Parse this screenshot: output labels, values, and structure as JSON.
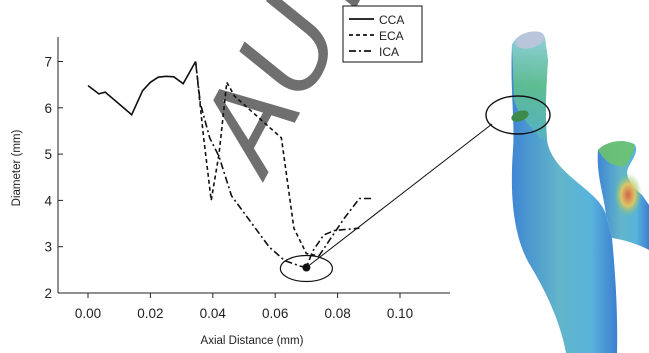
{
  "watermark": "AUTHOR",
  "chart_data": {
    "type": "line",
    "xlabel": "Axial Distance (mm)",
    "ylabel": "Diameter (mm)",
    "xlim": [
      -0.01,
      0.1
    ],
    "ylim": [
      2,
      7.5
    ],
    "x_ticks": [
      "0.00",
      "0.02",
      "0.04",
      "0.06",
      "0.08",
      "0.10"
    ],
    "x_tick_values": [
      0.0,
      0.02,
      0.04,
      0.06,
      0.08,
      0.1
    ],
    "y_ticks": [
      "2",
      "3",
      "4",
      "5",
      "6",
      "7"
    ],
    "y_tick_values": [
      2,
      3,
      4,
      5,
      6,
      7
    ],
    "grid": false,
    "legend": "top-right",
    "series": [
      {
        "name": "CCA",
        "style": "solid",
        "x": [
          0.0,
          0.0035,
          0.0055,
          0.014,
          0.0175,
          0.02,
          0.0225,
          0.025,
          0.0275,
          0.0305,
          0.0345
        ],
        "y": [
          6.48,
          6.3,
          6.34,
          5.85,
          6.37,
          6.55,
          6.66,
          6.68,
          6.67,
          6.52,
          7.0
        ]
      },
      {
        "name": "ECA",
        "style": "dashed",
        "x": [
          0.0345,
          0.037,
          0.0395,
          0.042,
          0.0445,
          0.047,
          0.062,
          0.066,
          0.07,
          0.074
        ],
        "y": [
          7.0,
          5.4,
          4.0,
          5.0,
          6.55,
          6.25,
          5.35,
          3.4,
          2.85,
          2.8
        ]
      },
      {
        "name": "ICA",
        "style": "dashdot",
        "x": [
          0.0345,
          0.036,
          0.039,
          0.042,
          0.046,
          0.052,
          0.058,
          0.063,
          0.068,
          0.07,
          0.072,
          0.0755,
          0.079,
          0.087
        ],
        "y": [
          7.0,
          6.1,
          5.35,
          4.95,
          4.1,
          3.55,
          3.0,
          2.7,
          2.58,
          2.55,
          2.9,
          3.25,
          3.35,
          3.4
        ]
      },
      {
        "name": "",
        "style": "dashdot",
        "x": [
          0.074,
          0.082,
          0.087,
          0.0915
        ],
        "y": [
          2.8,
          3.6,
          4.04,
          4.04
        ]
      }
    ],
    "highlight_point": {
      "x": 0.07,
      "y": 2.55
    }
  },
  "colors": {
    "axis": "#222222",
    "line": "#111111",
    "watermark": "#d7d7d7",
    "vessel_base": "#4b8fd8",
    "vessel_green": "#6fc870",
    "vessel_yellow": "#d9d65a",
    "vessel_red": "#e2583a"
  }
}
